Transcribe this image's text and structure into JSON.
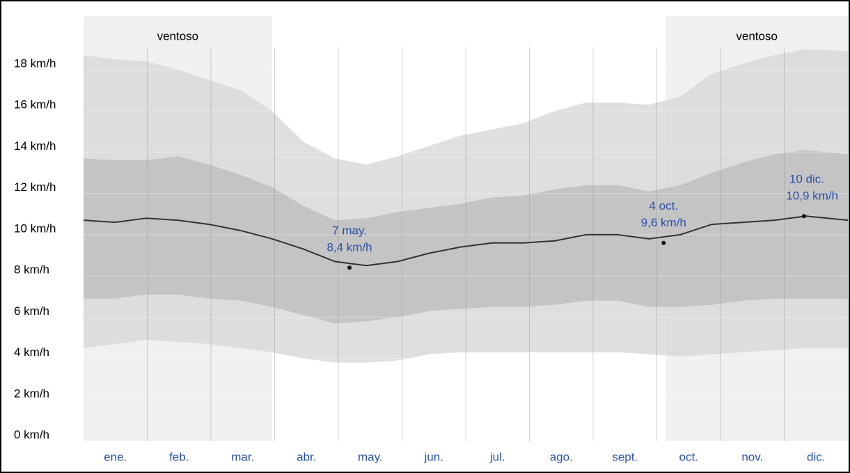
{
  "chart_data": {
    "type": "band",
    "xlim": [
      0,
      365
    ],
    "ylim": [
      0,
      20.6
    ],
    "yticks": [
      {
        "value": 0,
        "label": "0 km/h"
      },
      {
        "value": 2,
        "label": "2 km/h"
      },
      {
        "value": 4,
        "label": "4 km/h"
      },
      {
        "value": 6,
        "label": "6 km/h"
      },
      {
        "value": 8,
        "label": "8 km/h"
      },
      {
        "value": 10,
        "label": "10 km/h"
      },
      {
        "value": 12,
        "label": "12 km/h"
      },
      {
        "value": 14,
        "label": "14 km/h"
      },
      {
        "value": 16,
        "label": "16 km/h"
      },
      {
        "value": 18,
        "label": "18 km/h"
      }
    ],
    "grid": true,
    "categories": [
      "ene.",
      "feb.",
      "mar.",
      "abr.",
      "may.",
      "jun.",
      "jul.",
      "ago.",
      "sept.",
      "oct.",
      "nov.",
      "dic."
    ],
    "seasons": [
      {
        "label": "ventoso",
        "start": 0,
        "end": 90,
        "color": "#f0f0f0"
      },
      {
        "label": "ventoso",
        "start": 278,
        "end": 365,
        "color": "#f0f0f0"
      }
    ],
    "x": [
      0,
      15,
      30,
      45,
      60,
      75,
      90,
      105,
      120,
      135,
      150,
      165,
      180,
      195,
      210,
      225,
      240,
      255,
      270,
      285,
      300,
      315,
      330,
      345,
      365
    ],
    "bands": [
      {
        "color": "#d9d9d9",
        "high": [
          18.7,
          18.5,
          18.4,
          18.0,
          17.5,
          17.0,
          16.0,
          14.5,
          13.7,
          13.4,
          13.8,
          14.3,
          14.8,
          15.1,
          15.4,
          16.0,
          16.4,
          16.4,
          16.3,
          16.7,
          17.8,
          18.3,
          18.7,
          19.0,
          18.9
        ],
        "low": [
          4.5,
          4.7,
          4.9,
          4.8,
          4.7,
          4.5,
          4.3,
          4.0,
          3.8,
          3.8,
          3.9,
          4.2,
          4.3,
          4.3,
          4.3,
          4.3,
          4.3,
          4.3,
          4.2,
          4.1,
          4.2,
          4.3,
          4.4,
          4.5,
          4.5
        ]
      },
      {
        "color": "#bfbfbf",
        "high": [
          13.7,
          13.6,
          13.6,
          13.8,
          13.4,
          12.9,
          12.3,
          11.4,
          10.7,
          10.8,
          11.1,
          11.3,
          11.5,
          11.8,
          11.9,
          12.2,
          12.4,
          12.4,
          12.1,
          12.4,
          13.0,
          13.5,
          13.9,
          14.1,
          13.9
        ],
        "low": [
          6.9,
          6.9,
          7.1,
          7.1,
          6.9,
          6.8,
          6.5,
          6.1,
          5.7,
          5.8,
          6.0,
          6.3,
          6.4,
          6.5,
          6.5,
          6.6,
          6.8,
          6.8,
          6.5,
          6.5,
          6.6,
          6.8,
          6.9,
          6.9,
          6.9
        ]
      }
    ],
    "line": {
      "color": "#333333",
      "values": [
        10.7,
        10.6,
        10.8,
        10.7,
        10.5,
        10.2,
        9.8,
        9.3,
        8.7,
        8.5,
        8.7,
        9.1,
        9.4,
        9.6,
        9.6,
        9.7,
        10.0,
        10.0,
        9.8,
        10.0,
        10.5,
        10.6,
        10.7,
        10.9,
        10.7
      ]
    },
    "annotations": [
      {
        "x": 127,
        "value": 8.4,
        "date_label": "7 may.",
        "value_label": "8,4 km/h"
      },
      {
        "x": 277,
        "value": 9.6,
        "date_label": "4 oct.",
        "value_label": "9,6 km/h"
      },
      {
        "x": 344,
        "value": 10.9,
        "date_label": "10 dic.",
        "value_label": "10,9 km/h"
      }
    ]
  }
}
